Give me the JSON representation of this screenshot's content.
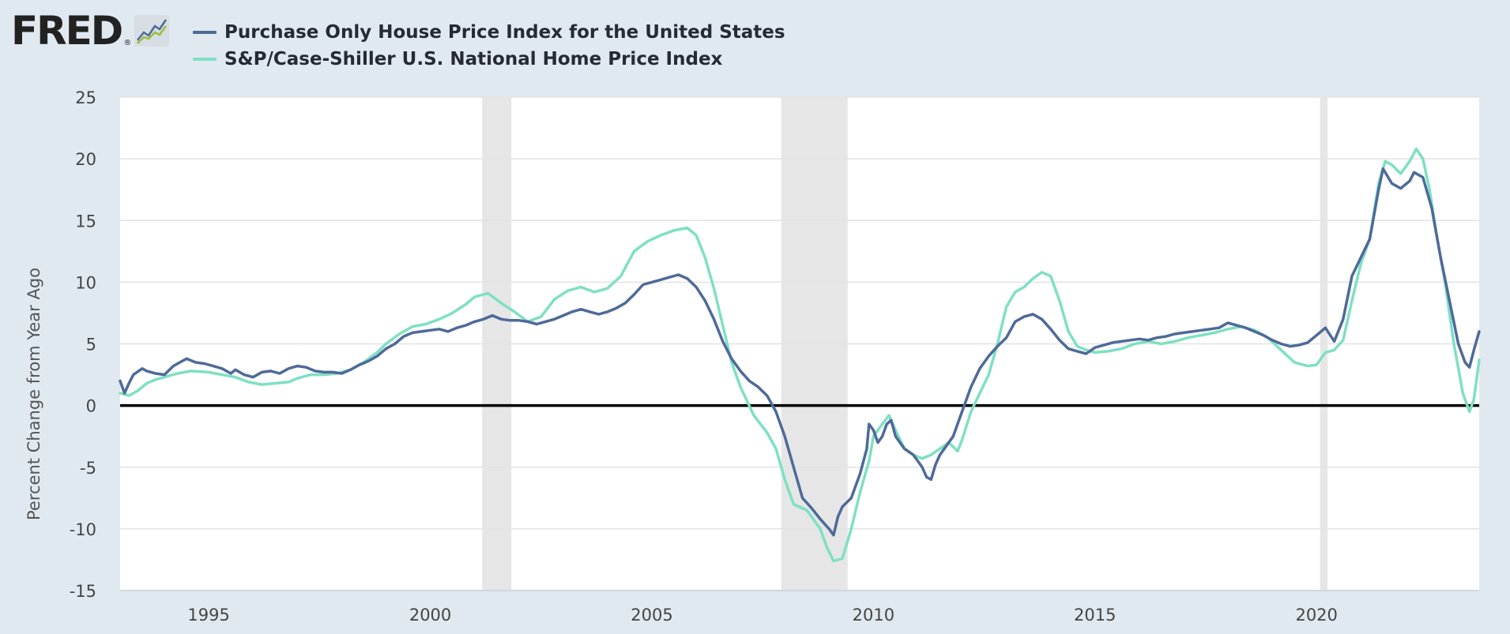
{
  "brand": {
    "name": "FRED",
    "reg": "®"
  },
  "legend": {
    "items": [
      {
        "label": "Purchase Only House Price Index for the United States",
        "color": "#4e6a99"
      },
      {
        "label": "S&P/Case-Shiller U.S. National Home Price Index",
        "color": "#7ee0c3"
      }
    ]
  },
  "chart_data": {
    "type": "line",
    "ylabel": "Percent Change from Year Ago",
    "xlabel": "",
    "title": "",
    "x_range": [
      1993.0,
      2023.67
    ],
    "ylim": [
      -15,
      25
    ],
    "y_ticks": [
      -15,
      -10,
      -5,
      0,
      5,
      10,
      15,
      20,
      25
    ],
    "x_ticks": [
      1995,
      2000,
      2005,
      2010,
      2015,
      2020
    ],
    "grid": true,
    "zero_line": true,
    "recessions": [
      [
        2001.17,
        2001.83
      ],
      [
        2007.92,
        2009.42
      ],
      [
        2020.08,
        2020.25
      ]
    ],
    "series": [
      {
        "name": "Purchase Only House Price Index for the United States",
        "color": "#4e6a99",
        "points": [
          [
            1993.0,
            2.0
          ],
          [
            1993.1,
            1.0
          ],
          [
            1993.2,
            1.8
          ],
          [
            1993.3,
            2.5
          ],
          [
            1993.5,
            3.0
          ],
          [
            1993.6,
            2.8
          ],
          [
            1993.8,
            2.6
          ],
          [
            1994.0,
            2.5
          ],
          [
            1994.2,
            3.2
          ],
          [
            1994.4,
            3.6
          ],
          [
            1994.5,
            3.8
          ],
          [
            1994.7,
            3.5
          ],
          [
            1994.9,
            3.4
          ],
          [
            1995.1,
            3.2
          ],
          [
            1995.3,
            3.0
          ],
          [
            1995.5,
            2.6
          ],
          [
            1995.6,
            2.9
          ],
          [
            1995.8,
            2.5
          ],
          [
            1996.0,
            2.3
          ],
          [
            1996.2,
            2.7
          ],
          [
            1996.4,
            2.8
          ],
          [
            1996.6,
            2.6
          ],
          [
            1996.8,
            3.0
          ],
          [
            1997.0,
            3.2
          ],
          [
            1997.2,
            3.1
          ],
          [
            1997.4,
            2.8
          ],
          [
            1997.6,
            2.7
          ],
          [
            1997.8,
            2.7
          ],
          [
            1998.0,
            2.6
          ],
          [
            1998.2,
            2.9
          ],
          [
            1998.4,
            3.3
          ],
          [
            1998.6,
            3.6
          ],
          [
            1998.8,
            4.0
          ],
          [
            1999.0,
            4.6
          ],
          [
            1999.2,
            5.0
          ],
          [
            1999.4,
            5.6
          ],
          [
            1999.6,
            5.9
          ],
          [
            1999.8,
            6.0
          ],
          [
            2000.0,
            6.1
          ],
          [
            2000.2,
            6.2
          ],
          [
            2000.4,
            6.0
          ],
          [
            2000.6,
            6.3
          ],
          [
            2000.8,
            6.5
          ],
          [
            2001.0,
            6.8
          ],
          [
            2001.2,
            7.0
          ],
          [
            2001.4,
            7.3
          ],
          [
            2001.6,
            7.0
          ],
          [
            2001.8,
            6.9
          ],
          [
            2002.0,
            6.9
          ],
          [
            2002.2,
            6.8
          ],
          [
            2002.4,
            6.6
          ],
          [
            2002.6,
            6.8
          ],
          [
            2002.8,
            7.0
          ],
          [
            2003.0,
            7.3
          ],
          [
            2003.2,
            7.6
          ],
          [
            2003.4,
            7.8
          ],
          [
            2003.6,
            7.6
          ],
          [
            2003.8,
            7.4
          ],
          [
            2004.0,
            7.6
          ],
          [
            2004.2,
            7.9
          ],
          [
            2004.4,
            8.3
          ],
          [
            2004.6,
            9.0
          ],
          [
            2004.8,
            9.8
          ],
          [
            2005.0,
            10.0
          ],
          [
            2005.2,
            10.2
          ],
          [
            2005.4,
            10.4
          ],
          [
            2005.6,
            10.6
          ],
          [
            2005.8,
            10.3
          ],
          [
            2006.0,
            9.6
          ],
          [
            2006.2,
            8.5
          ],
          [
            2006.4,
            7.0
          ],
          [
            2006.6,
            5.2
          ],
          [
            2006.8,
            3.8
          ],
          [
            2007.0,
            2.8
          ],
          [
            2007.2,
            2.0
          ],
          [
            2007.4,
            1.5
          ],
          [
            2007.6,
            0.8
          ],
          [
            2007.8,
            -0.5
          ],
          [
            2008.0,
            -2.5
          ],
          [
            2008.2,
            -5.0
          ],
          [
            2008.4,
            -7.5
          ],
          [
            2008.6,
            -8.3
          ],
          [
            2008.8,
            -9.2
          ],
          [
            2009.0,
            -10.0
          ],
          [
            2009.1,
            -10.5
          ],
          [
            2009.2,
            -9.0
          ],
          [
            2009.3,
            -8.2
          ],
          [
            2009.5,
            -7.5
          ],
          [
            2009.7,
            -5.5
          ],
          [
            2009.85,
            -3.5
          ],
          [
            2009.9,
            -1.5
          ],
          [
            2010.0,
            -2.0
          ],
          [
            2010.1,
            -3.0
          ],
          [
            2010.2,
            -2.5
          ],
          [
            2010.3,
            -1.5
          ],
          [
            2010.4,
            -1.2
          ],
          [
            2010.5,
            -2.5
          ],
          [
            2010.7,
            -3.5
          ],
          [
            2010.9,
            -4.0
          ],
          [
            2011.0,
            -4.5
          ],
          [
            2011.1,
            -5.0
          ],
          [
            2011.2,
            -5.8
          ],
          [
            2011.3,
            -6.0
          ],
          [
            2011.4,
            -4.8
          ],
          [
            2011.5,
            -4.0
          ],
          [
            2011.6,
            -3.5
          ],
          [
            2011.8,
            -2.5
          ],
          [
            2012.0,
            -0.5
          ],
          [
            2012.2,
            1.5
          ],
          [
            2012.4,
            3.0
          ],
          [
            2012.6,
            4.0
          ],
          [
            2012.8,
            4.8
          ],
          [
            2013.0,
            5.5
          ],
          [
            2013.2,
            6.8
          ],
          [
            2013.4,
            7.2
          ],
          [
            2013.6,
            7.4
          ],
          [
            2013.8,
            7.0
          ],
          [
            2014.0,
            6.2
          ],
          [
            2014.2,
            5.3
          ],
          [
            2014.4,
            4.6
          ],
          [
            2014.6,
            4.4
          ],
          [
            2014.8,
            4.2
          ],
          [
            2015.0,
            4.7
          ],
          [
            2015.2,
            4.9
          ],
          [
            2015.4,
            5.1
          ],
          [
            2015.6,
            5.2
          ],
          [
            2015.8,
            5.3
          ],
          [
            2016.0,
            5.4
          ],
          [
            2016.2,
            5.3
          ],
          [
            2016.4,
            5.5
          ],
          [
            2016.6,
            5.6
          ],
          [
            2016.8,
            5.8
          ],
          [
            2017.0,
            5.9
          ],
          [
            2017.2,
            6.0
          ],
          [
            2017.4,
            6.1
          ],
          [
            2017.6,
            6.2
          ],
          [
            2017.8,
            6.3
          ],
          [
            2018.0,
            6.7
          ],
          [
            2018.2,
            6.5
          ],
          [
            2018.4,
            6.3
          ],
          [
            2018.6,
            6.0
          ],
          [
            2018.8,
            5.7
          ],
          [
            2019.0,
            5.3
          ],
          [
            2019.2,
            5.0
          ],
          [
            2019.4,
            4.8
          ],
          [
            2019.6,
            4.9
          ],
          [
            2019.8,
            5.1
          ],
          [
            2020.0,
            5.7
          ],
          [
            2020.2,
            6.3
          ],
          [
            2020.4,
            5.2
          ],
          [
            2020.6,
            7.0
          ],
          [
            2020.8,
            10.5
          ],
          [
            2021.0,
            12.0
          ],
          [
            2021.2,
            13.5
          ],
          [
            2021.4,
            17.5
          ],
          [
            2021.5,
            19.2
          ],
          [
            2021.7,
            18.0
          ],
          [
            2021.9,
            17.6
          ],
          [
            2022.1,
            18.2
          ],
          [
            2022.2,
            18.9
          ],
          [
            2022.4,
            18.5
          ],
          [
            2022.6,
            16.0
          ],
          [
            2022.8,
            12.0
          ],
          [
            2023.0,
            8.5
          ],
          [
            2023.2,
            5.0
          ],
          [
            2023.35,
            3.5
          ],
          [
            2023.45,
            3.1
          ],
          [
            2023.55,
            4.5
          ],
          [
            2023.67,
            6.0
          ]
        ]
      },
      {
        "name": "S&P/Case-Shiller U.S. National Home Price Index",
        "color": "#7ee0c3",
        "points": [
          [
            1993.0,
            1.0
          ],
          [
            1993.2,
            0.8
          ],
          [
            1993.4,
            1.2
          ],
          [
            1993.6,
            1.8
          ],
          [
            1993.8,
            2.1
          ],
          [
            1994.0,
            2.3
          ],
          [
            1994.3,
            2.6
          ],
          [
            1994.6,
            2.8
          ],
          [
            1995.0,
            2.7
          ],
          [
            1995.3,
            2.5
          ],
          [
            1995.6,
            2.3
          ],
          [
            1995.9,
            1.9
          ],
          [
            1996.2,
            1.7
          ],
          [
            1996.5,
            1.8
          ],
          [
            1996.8,
            1.9
          ],
          [
            1997.0,
            2.2
          ],
          [
            1997.3,
            2.5
          ],
          [
            1997.6,
            2.5
          ],
          [
            1997.9,
            2.6
          ],
          [
            1998.2,
            2.9
          ],
          [
            1998.5,
            3.5
          ],
          [
            1998.8,
            4.3
          ],
          [
            1999.0,
            5.0
          ],
          [
            1999.3,
            5.8
          ],
          [
            1999.6,
            6.4
          ],
          [
            1999.9,
            6.6
          ],
          [
            2000.2,
            7.0
          ],
          [
            2000.5,
            7.5
          ],
          [
            2000.8,
            8.2
          ],
          [
            2001.0,
            8.8
          ],
          [
            2001.3,
            9.1
          ],
          [
            2001.6,
            8.3
          ],
          [
            2001.9,
            7.6
          ],
          [
            2002.2,
            6.8
          ],
          [
            2002.5,
            7.2
          ],
          [
            2002.8,
            8.6
          ],
          [
            2003.1,
            9.3
          ],
          [
            2003.4,
            9.6
          ],
          [
            2003.7,
            9.2
          ],
          [
            2004.0,
            9.5
          ],
          [
            2004.3,
            10.5
          ],
          [
            2004.6,
            12.5
          ],
          [
            2004.9,
            13.3
          ],
          [
            2005.2,
            13.8
          ],
          [
            2005.5,
            14.2
          ],
          [
            2005.8,
            14.4
          ],
          [
            2006.0,
            13.8
          ],
          [
            2006.2,
            12.0
          ],
          [
            2006.4,
            9.5
          ],
          [
            2006.6,
            6.5
          ],
          [
            2006.8,
            3.5
          ],
          [
            2007.0,
            1.5
          ],
          [
            2007.3,
            -0.8
          ],
          [
            2007.6,
            -2.2
          ],
          [
            2007.8,
            -3.5
          ],
          [
            2008.0,
            -6.0
          ],
          [
            2008.2,
            -8.0
          ],
          [
            2008.5,
            -8.5
          ],
          [
            2008.8,
            -10.0
          ],
          [
            2008.95,
            -11.5
          ],
          [
            2009.1,
            -12.6
          ],
          [
            2009.3,
            -12.4
          ],
          [
            2009.5,
            -10.0
          ],
          [
            2009.7,
            -7.0
          ],
          [
            2009.9,
            -4.5
          ],
          [
            2010.0,
            -2.5
          ],
          [
            2010.2,
            -1.5
          ],
          [
            2010.35,
            -0.8
          ],
          [
            2010.5,
            -2.0
          ],
          [
            2010.7,
            -3.5
          ],
          [
            2010.9,
            -4.0
          ],
          [
            2011.1,
            -4.3
          ],
          [
            2011.3,
            -4.0
          ],
          [
            2011.5,
            -3.5
          ],
          [
            2011.7,
            -3.0
          ],
          [
            2011.9,
            -3.7
          ],
          [
            2012.0,
            -2.8
          ],
          [
            2012.2,
            -0.5
          ],
          [
            2012.4,
            1.0
          ],
          [
            2012.6,
            2.5
          ],
          [
            2012.8,
            5.0
          ],
          [
            2013.0,
            8.0
          ],
          [
            2013.2,
            9.2
          ],
          [
            2013.4,
            9.6
          ],
          [
            2013.6,
            10.3
          ],
          [
            2013.8,
            10.8
          ],
          [
            2014.0,
            10.5
          ],
          [
            2014.2,
            8.5
          ],
          [
            2014.4,
            6.0
          ],
          [
            2014.6,
            4.8
          ],
          [
            2014.8,
            4.5
          ],
          [
            2015.0,
            4.3
          ],
          [
            2015.3,
            4.4
          ],
          [
            2015.6,
            4.6
          ],
          [
            2015.9,
            5.0
          ],
          [
            2016.2,
            5.2
          ],
          [
            2016.5,
            5.0
          ],
          [
            2016.8,
            5.2
          ],
          [
            2017.1,
            5.5
          ],
          [
            2017.4,
            5.7
          ],
          [
            2017.7,
            5.9
          ],
          [
            2018.0,
            6.2
          ],
          [
            2018.3,
            6.4
          ],
          [
            2018.6,
            6.1
          ],
          [
            2018.9,
            5.5
          ],
          [
            2019.2,
            4.5
          ],
          [
            2019.5,
            3.5
          ],
          [
            2019.8,
            3.2
          ],
          [
            2020.0,
            3.3
          ],
          [
            2020.2,
            4.3
          ],
          [
            2020.4,
            4.5
          ],
          [
            2020.6,
            5.3
          ],
          [
            2020.8,
            8.5
          ],
          [
            2021.0,
            11.5
          ],
          [
            2021.2,
            13.5
          ],
          [
            2021.4,
            18.0
          ],
          [
            2021.55,
            19.8
          ],
          [
            2021.7,
            19.5
          ],
          [
            2021.9,
            18.8
          ],
          [
            2022.1,
            19.8
          ],
          [
            2022.25,
            20.8
          ],
          [
            2022.4,
            20.0
          ],
          [
            2022.55,
            17.5
          ],
          [
            2022.7,
            14.0
          ],
          [
            2022.9,
            10.0
          ],
          [
            2023.1,
            5.0
          ],
          [
            2023.3,
            1.0
          ],
          [
            2023.45,
            -0.5
          ],
          [
            2023.55,
            0.5
          ],
          [
            2023.67,
            3.7
          ]
        ]
      }
    ]
  }
}
